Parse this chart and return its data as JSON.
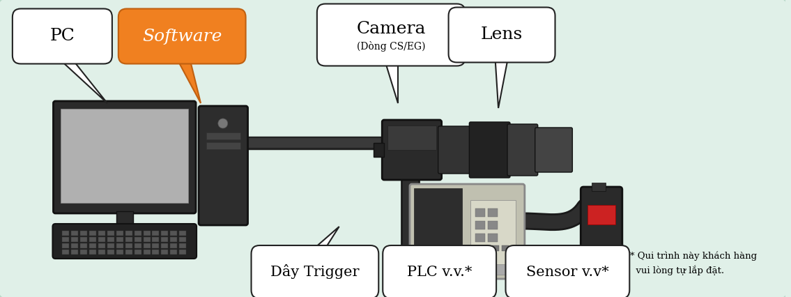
{
  "bg_color": "#e0f0e8",
  "pc_label": "PC",
  "sw_label": "Software",
  "sw_color": "#f08020",
  "cam_label": "Camera",
  "cam_sub": "(Dòng CS/EG)",
  "lens_label": "Lens",
  "trig_label": "Dây Trigger",
  "plc_label": "PLC v.v.*",
  "sensor_label": "Sensor v.v*",
  "note": "* Qui trình này khách hàng\n  vui lòng tự lắp đặt."
}
